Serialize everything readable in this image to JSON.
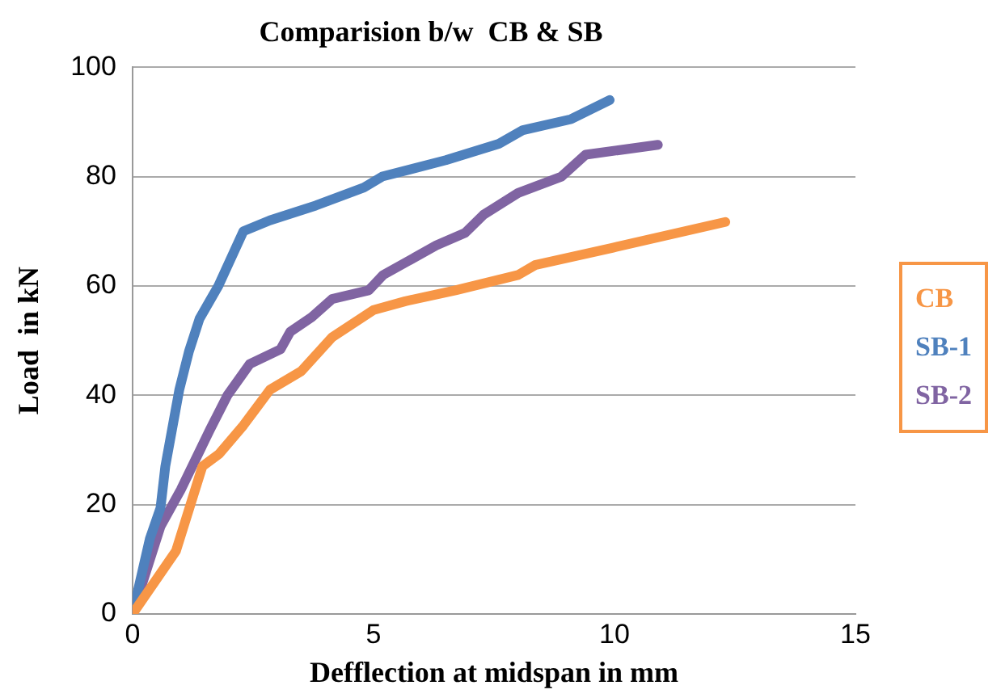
{
  "chart_data": {
    "type": "line",
    "title": "Comparision b/w  CB & SB",
    "xlabel": "Defflection at midspan in mm",
    "ylabel": "Load  in kN",
    "xlim": [
      0,
      15
    ],
    "xticks": [
      0,
      5,
      10,
      15
    ],
    "ylim": [
      0,
      100
    ],
    "yticks": [
      0,
      20,
      40,
      60,
      80,
      100
    ],
    "grid": "y",
    "legend": "right",
    "marker": "none",
    "line_style": "solid",
    "series": [
      {
        "name": "CB",
        "color": "#f79646",
        "x": [
          0,
          0.9,
          1.45,
          1.8,
          2.3,
          2.85,
          3.5,
          4.14,
          5.0,
          5.66,
          6.7,
          8.0,
          8.35,
          9.97,
          12.3
        ],
        "values": [
          0,
          11.5,
          27,
          29.3,
          34.5,
          41,
          44.4,
          50.6,
          55.6,
          57.2,
          59.2,
          62,
          63.8,
          67,
          71.7
        ]
      },
      {
        "name": "SB-1",
        "color": "#4f81bd",
        "x": [
          0,
          0.36,
          0.58,
          0.68,
          0.97,
          1.17,
          1.39,
          1.78,
          2.3,
          2.85,
          3.8,
          4.8,
          5.18,
          6.5,
          7.6,
          8.1,
          9.1,
          9.9
        ],
        "values": [
          0,
          13.8,
          19.4,
          27,
          41,
          48,
          54,
          60,
          70,
          72,
          74.7,
          78,
          80,
          83,
          86,
          88.5,
          90.5,
          94
        ]
      },
      {
        "name": "SB-2",
        "color": "#8064a2",
        "x": [
          0,
          0.58,
          1.0,
          1.6,
          1.97,
          2.43,
          3.07,
          3.27,
          3.72,
          4.14,
          4.9,
          5.2,
          6.3,
          6.9,
          7.28,
          8.0,
          8.9,
          9.4,
          10.9
        ],
        "values": [
          0,
          16,
          22.7,
          33.6,
          40,
          45.7,
          48.4,
          51.6,
          54.3,
          57.6,
          59.2,
          62,
          67.4,
          69.7,
          73,
          77,
          80,
          84,
          85.8
        ]
      }
    ]
  }
}
